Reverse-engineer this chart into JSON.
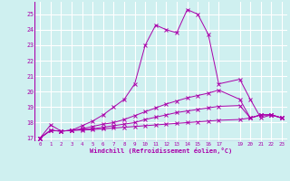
{
  "xlabel": "Windchill (Refroidissement éolien,°C)",
  "bg_color": "#cff0f0",
  "grid_color": "#ffffff",
  "line_color": "#aa00aa",
  "xlim": [
    -0.5,
    23.5
  ],
  "ylim": [
    16.8,
    25.8
  ],
  "yticks": [
    17,
    18,
    19,
    20,
    21,
    22,
    23,
    24,
    25
  ],
  "xtick_positions": [
    0,
    1,
    2,
    3,
    4,
    5,
    6,
    7,
    8,
    9,
    10,
    11,
    12,
    13,
    14,
    15,
    16,
    17,
    19,
    20,
    21,
    22,
    23
  ],
  "xtick_labels": [
    "0",
    "1",
    "2",
    "3",
    "4",
    "5",
    "6",
    "7",
    "8",
    "9",
    "10",
    "11",
    "12",
    "13",
    "14",
    "15",
    "16",
    "17",
    "19",
    "20",
    "21",
    "22",
    "23"
  ],
  "series": [
    {
      "x": [
        0,
        1,
        2,
        3,
        4,
        5,
        6,
        7,
        8,
        9,
        10,
        11,
        12,
        13,
        14,
        15,
        16,
        17,
        19,
        20,
        21,
        22,
        23
      ],
      "y": [
        17.0,
        17.85,
        17.45,
        17.5,
        17.8,
        18.1,
        18.5,
        19.0,
        19.5,
        20.5,
        23.0,
        24.3,
        24.0,
        23.8,
        25.3,
        25.0,
        23.7,
        20.5,
        20.8,
        19.5,
        18.3,
        18.5,
        18.3
      ]
    },
    {
      "x": [
        0,
        1,
        2,
        3,
        4,
        5,
        6,
        7,
        8,
        9,
        10,
        11,
        12,
        13,
        14,
        15,
        16,
        17,
        19,
        20,
        21,
        22,
        23
      ],
      "y": [
        17.0,
        17.5,
        17.45,
        17.5,
        17.6,
        17.75,
        17.9,
        18.0,
        18.2,
        18.45,
        18.7,
        18.95,
        19.2,
        19.4,
        19.6,
        19.75,
        19.9,
        20.1,
        19.5,
        18.3,
        18.5,
        18.5,
        18.3
      ]
    },
    {
      "x": [
        0,
        1,
        2,
        3,
        4,
        5,
        6,
        7,
        8,
        9,
        10,
        11,
        12,
        13,
        14,
        15,
        16,
        17,
        19,
        20,
        21,
        22,
        23
      ],
      "y": [
        17.0,
        17.5,
        17.45,
        17.5,
        17.55,
        17.6,
        17.7,
        17.8,
        17.9,
        18.0,
        18.2,
        18.35,
        18.5,
        18.65,
        18.75,
        18.85,
        18.95,
        19.05,
        19.1,
        18.3,
        18.5,
        18.5,
        18.3
      ]
    },
    {
      "x": [
        0,
        1,
        2,
        3,
        4,
        5,
        6,
        7,
        8,
        9,
        10,
        11,
        12,
        13,
        14,
        15,
        16,
        17,
        19,
        20,
        21,
        22,
        23
      ],
      "y": [
        17.0,
        17.5,
        17.45,
        17.5,
        17.52,
        17.55,
        17.6,
        17.65,
        17.7,
        17.75,
        17.8,
        17.85,
        17.9,
        17.95,
        18.0,
        18.05,
        18.1,
        18.15,
        18.2,
        18.3,
        18.5,
        18.5,
        18.3
      ]
    }
  ]
}
